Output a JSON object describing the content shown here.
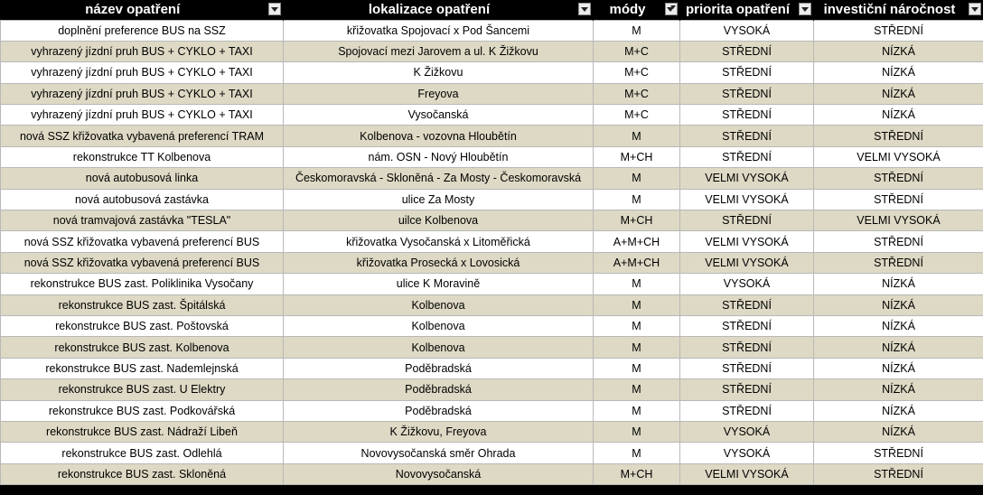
{
  "headers": {
    "col1": "název opatření",
    "col2": "lokalizace opatření",
    "col3": "módy",
    "col4": "priorita opatření",
    "col5": "investiční náročnost"
  },
  "rows": [
    [
      "doplnění preference BUS na SSZ",
      "křižovatka Spojovací x Pod Šancemi",
      "M",
      "VYSOKÁ",
      "STŘEDNÍ"
    ],
    [
      "vyhrazený jízdní pruh BUS + CYKLO + TAXI",
      "Spojovací mezi Jarovem a ul. K Žižkovu",
      "M+C",
      "STŘEDNÍ",
      "NÍZKÁ"
    ],
    [
      "vyhrazený jízdní pruh BUS + CYKLO + TAXI",
      "K Žižkovu",
      "M+C",
      "STŘEDNÍ",
      "NÍZKÁ"
    ],
    [
      "vyhrazený jízdní pruh BUS + CYKLO + TAXI",
      "Freyova",
      "M+C",
      "STŘEDNÍ",
      "NÍZKÁ"
    ],
    [
      "vyhrazený jízdní pruh BUS + CYKLO + TAXI",
      "Vysočanská",
      "M+C",
      "STŘEDNÍ",
      "NÍZKÁ"
    ],
    [
      "nová SSZ křižovatka vybavená preferencí TRAM",
      "Kolbenova - vozovna Hloubětín",
      "M",
      "STŘEDNÍ",
      "STŘEDNÍ"
    ],
    [
      "rekonstrukce TT Kolbenova",
      "nám. OSN - Nový Hloubětín",
      "M+CH",
      "STŘEDNÍ",
      "VELMI VYSOKÁ"
    ],
    [
      "nová autobusová linka",
      "Českomoravská - Skloněná - Za Mosty - Českomoravská",
      "M",
      "VELMI VYSOKÁ",
      "STŘEDNÍ"
    ],
    [
      "nová autobusová zastávka",
      "ulice Za Mosty",
      "M",
      "VELMI VYSOKÁ",
      "STŘEDNÍ"
    ],
    [
      "nová tramvajová zastávka \"TESLA\"",
      "uilce Kolbenova",
      "M+CH",
      "STŘEDNÍ",
      "VELMI VYSOKÁ"
    ],
    [
      "nová SSZ křižovatka vybavená preferencí BUS",
      "křižovatka Vysočanská x Litoměřická",
      "A+M+CH",
      "VELMI VYSOKÁ",
      "STŘEDNÍ"
    ],
    [
      "nová SSZ křižovatka vybavená preferencí BUS",
      "křižovatka Prosecká x Lovosická",
      "A+M+CH",
      "VELMI VYSOKÁ",
      "STŘEDNÍ"
    ],
    [
      "rekonstrukce BUS zast. Poliklinika Vysočany",
      "ulice K Moravině",
      "M",
      "VYSOKÁ",
      "NÍZKÁ"
    ],
    [
      "rekonstrukce BUS zast. Špitálská",
      "Kolbenova",
      "M",
      "STŘEDNÍ",
      "NÍZKÁ"
    ],
    [
      "rekonstrukce BUS zast. Poštovská",
      "Kolbenova",
      "M",
      "STŘEDNÍ",
      "NÍZKÁ"
    ],
    [
      "rekonstrukce BUS zast. Kolbenova",
      "Kolbenova",
      "M",
      "STŘEDNÍ",
      "NÍZKÁ"
    ],
    [
      "rekonstrukce BUS zast. Nademlejnská",
      "Poděbradská",
      "M",
      "STŘEDNÍ",
      "NÍZKÁ"
    ],
    [
      "rekonstrukce BUS zast. U Elektry",
      "Poděbradská",
      "M",
      "STŘEDNÍ",
      "NÍZKÁ"
    ],
    [
      "rekonstrukce BUS zast. Podkovářská",
      "Poděbradská",
      "M",
      "STŘEDNÍ",
      "NÍZKÁ"
    ],
    [
      "rekonstrukce BUS zast. Nádraží Libeň",
      "K Žižkovu, Freyova",
      "M",
      "VYSOKÁ",
      "NÍZKÁ"
    ],
    [
      "rekonstrukce BUS zast. Odlehlá",
      "Novovysočanská směr Ohrada",
      "M",
      "VYSOKÁ",
      "STŘEDNÍ"
    ],
    [
      "rekonstrukce BUS zast. Skloněná",
      "Novovysočanská",
      "M+CH",
      "VELMI VYSOKÁ",
      "STŘEDNÍ"
    ]
  ]
}
